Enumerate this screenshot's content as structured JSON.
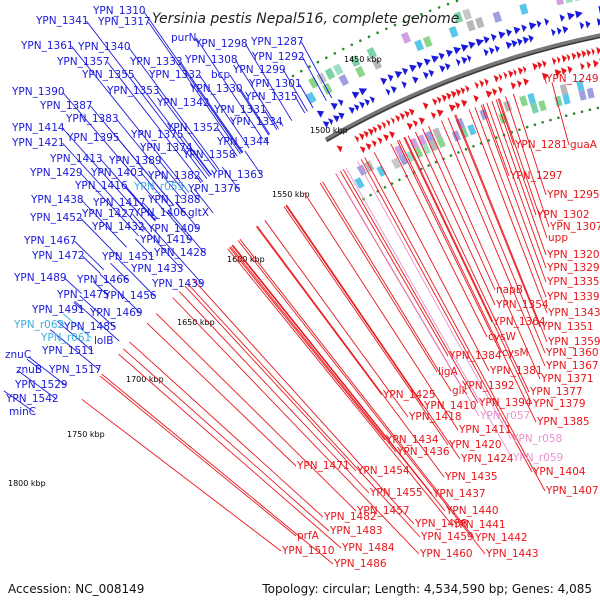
{
  "title": "Yersinia pestis Nepal516, complete genome",
  "footer": {
    "accession": "Accession: NC_008149",
    "summary": "Topology: circular; Length: 4,534,590 bp; Genes: 4,085"
  },
  "colors": {
    "blue": "#1a1adb",
    "red": "#e8161b",
    "cyan": "#3bb0e0",
    "pink": "#e892d0"
  },
  "scale_labels": [
    "1450 kbp",
    "1500 kbp",
    "1550 kbp",
    "1600 kbp",
    "1650 kbp",
    "1700 kbp",
    "1750 kbp",
    "1800 kbp"
  ],
  "left_labels": [
    {
      "t": "YPN_1310",
      "c": "blue"
    },
    {
      "t": "YPN_1341",
      "c": "blue"
    },
    {
      "t": "YPN_1317",
      "c": "blue"
    },
    {
      "t": "purN",
      "c": "blue"
    },
    {
      "t": "YPN_1298",
      "c": "blue"
    },
    {
      "t": "YPN_1287",
      "c": "blue"
    },
    {
      "t": "YPN_1361",
      "c": "blue"
    },
    {
      "t": "YPN_1340",
      "c": "blue"
    },
    {
      "t": "YPN_1308",
      "c": "blue"
    },
    {
      "t": "YPN_1292",
      "c": "blue"
    },
    {
      "t": "YPN_1357",
      "c": "blue"
    },
    {
      "t": "YPN_1333",
      "c": "blue"
    },
    {
      "t": "YPN_1299",
      "c": "blue"
    },
    {
      "t": "YPN_1355",
      "c": "blue"
    },
    {
      "t": "YPN_1332",
      "c": "blue"
    },
    {
      "t": "bcp",
      "c": "blue"
    },
    {
      "t": "YPN_1301",
      "c": "blue"
    },
    {
      "t": "YPN_1330",
      "c": "blue"
    },
    {
      "t": "YPN_1390",
      "c": "blue"
    },
    {
      "t": "YPN_1353",
      "c": "blue"
    },
    {
      "t": "YPN_1315",
      "c": "blue"
    },
    {
      "t": "YPN_1387",
      "c": "blue"
    },
    {
      "t": "YPN_1342",
      "c": "blue"
    },
    {
      "t": "YPN_1331",
      "c": "blue"
    },
    {
      "t": "YPN_1383",
      "c": "blue"
    },
    {
      "t": "YPN_1334",
      "c": "blue"
    },
    {
      "t": "YPN_1414",
      "c": "blue"
    },
    {
      "t": "YPN_1352",
      "c": "blue"
    },
    {
      "t": "YPN_1375",
      "c": "blue"
    },
    {
      "t": "YPN_1421",
      "c": "blue"
    },
    {
      "t": "YPN_1395",
      "c": "blue"
    },
    {
      "t": "YPN_1344",
      "c": "blue"
    },
    {
      "t": "YPN_1374",
      "c": "blue"
    },
    {
      "t": "YPN_1413",
      "c": "blue"
    },
    {
      "t": "YPN_1389",
      "c": "blue"
    },
    {
      "t": "YPN_1358",
      "c": "blue"
    },
    {
      "t": "YPN_1429",
      "c": "blue"
    },
    {
      "t": "YPN_1403",
      "c": "blue"
    },
    {
      "t": "YPN_1382",
      "c": "blue"
    },
    {
      "t": "YPN_1363",
      "c": "blue"
    },
    {
      "t": "YPN_1416",
      "c": "blue"
    },
    {
      "t": "YPN_r055",
      "c": "cyan"
    },
    {
      "t": "YPN_1376",
      "c": "blue"
    },
    {
      "t": "YPN_1438",
      "c": "blue"
    },
    {
      "t": "YPN_1417",
      "c": "blue"
    },
    {
      "t": "YPN_1388",
      "c": "blue"
    },
    {
      "t": "YPN_1452",
      "c": "blue"
    },
    {
      "t": "YPN_1427",
      "c": "blue"
    },
    {
      "t": "YPN_1406",
      "c": "blue"
    },
    {
      "t": "gltX",
      "c": "blue"
    },
    {
      "t": "YPN_1432",
      "c": "blue"
    },
    {
      "t": "YPN_1409",
      "c": "blue"
    },
    {
      "t": "YPN_1467",
      "c": "blue"
    },
    {
      "t": "YPN_1419",
      "c": "blue"
    },
    {
      "t": "YPN_1472",
      "c": "blue"
    },
    {
      "t": "YPN_1451",
      "c": "blue"
    },
    {
      "t": "YPN_1428",
      "c": "blue"
    },
    {
      "t": "YPN_1433",
      "c": "blue"
    },
    {
      "t": "YPN_1489",
      "c": "blue"
    },
    {
      "t": "YPN_1466",
      "c": "blue"
    },
    {
      "t": "YPN_1439",
      "c": "blue"
    },
    {
      "t": "YPN_1475",
      "c": "blue"
    },
    {
      "t": "YPN_1456",
      "c": "blue"
    },
    {
      "t": "YPN_1491",
      "c": "blue"
    },
    {
      "t": "YPN_1469",
      "c": "blue"
    },
    {
      "t": "YPN_r062",
      "c": "cyan"
    },
    {
      "t": "YPN_1485",
      "c": "blue"
    },
    {
      "t": "YPN_r061",
      "c": "cyan"
    },
    {
      "t": "lolB",
      "c": "blue"
    },
    {
      "t": "YPN_1511",
      "c": "blue"
    },
    {
      "t": "znuC",
      "c": "blue"
    },
    {
      "t": "znuB",
      "c": "blue"
    },
    {
      "t": "YPN_1517",
      "c": "blue"
    },
    {
      "t": "YPN_1529",
      "c": "blue"
    },
    {
      "t": "YPN_1542",
      "c": "blue"
    },
    {
      "t": "minC",
      "c": "blue"
    }
  ],
  "right_labels": [
    {
      "t": "YPN_1249",
      "c": "red"
    },
    {
      "t": "YPN_1281",
      "c": "red"
    },
    {
      "t": "guaA",
      "c": "red"
    },
    {
      "t": "YPN_1297",
      "c": "red"
    },
    {
      "t": "YPN_1295",
      "c": "red"
    },
    {
      "t": "YPN_1302",
      "c": "red"
    },
    {
      "t": "YPN_1307",
      "c": "red"
    },
    {
      "t": "upp",
      "c": "red"
    },
    {
      "t": "YPN_1320",
      "c": "red"
    },
    {
      "t": "YPN_1329",
      "c": "red"
    },
    {
      "t": "YPN_1335",
      "c": "red"
    },
    {
      "t": "napB",
      "c": "red"
    },
    {
      "t": "YPN_1339",
      "c": "red"
    },
    {
      "t": "YPN_1354",
      "c": "red"
    },
    {
      "t": "YPN_1343",
      "c": "red"
    },
    {
      "t": "YPN_1364",
      "c": "red"
    },
    {
      "t": "YPN_1351",
      "c": "red"
    },
    {
      "t": "cysW",
      "c": "red"
    },
    {
      "t": "YPN_1359",
      "c": "red"
    },
    {
      "t": "cysM",
      "c": "red"
    },
    {
      "t": "YPN_1360",
      "c": "red"
    },
    {
      "t": "YPN_1384",
      "c": "red"
    },
    {
      "t": "YPN_1367",
      "c": "red"
    },
    {
      "t": "ligA",
      "c": "red"
    },
    {
      "t": "YPN_1381",
      "c": "red"
    },
    {
      "t": "YPN_1371",
      "c": "red"
    },
    {
      "t": "YPN_1392",
      "c": "red"
    },
    {
      "t": "YPN_1377",
      "c": "red"
    },
    {
      "t": "glk",
      "c": "red"
    },
    {
      "t": "YPN_1425",
      "c": "red"
    },
    {
      "t": "YPN_1394",
      "c": "red"
    },
    {
      "t": "YPN_1379",
      "c": "red"
    },
    {
      "t": "YPN_1410",
      "c": "red"
    },
    {
      "t": "YPN_r057",
      "c": "pink"
    },
    {
      "t": "YPN_1418",
      "c": "red"
    },
    {
      "t": "YPN_1385",
      "c": "red"
    },
    {
      "t": "YPN_1411",
      "c": "red"
    },
    {
      "t": "YPN_1434",
      "c": "red"
    },
    {
      "t": "YPN_r058",
      "c": "pink"
    },
    {
      "t": "YPN_1420",
      "c": "red"
    },
    {
      "t": "YPN_1436",
      "c": "red"
    },
    {
      "t": "YPN_1424",
      "c": "red"
    },
    {
      "t": "YPN_r059",
      "c": "pink"
    },
    {
      "t": "YPN_1471",
      "c": "red"
    },
    {
      "t": "YPN_1404",
      "c": "red"
    },
    {
      "t": "YPN_1454",
      "c": "red"
    },
    {
      "t": "YPN_1435",
      "c": "red"
    },
    {
      "t": "YPN_1407",
      "c": "red"
    },
    {
      "t": "YPN_1455",
      "c": "red"
    },
    {
      "t": "YPN_1437",
      "c": "red"
    },
    {
      "t": "YPN_1457",
      "c": "red"
    },
    {
      "t": "YPN_1440",
      "c": "red"
    },
    {
      "t": "YPN_1482",
      "c": "red"
    },
    {
      "t": "YPN_1458",
      "c": "red"
    },
    {
      "t": "YPN_1441",
      "c": "red"
    },
    {
      "t": "YPN_1483",
      "c": "red"
    },
    {
      "t": "prfA",
      "c": "red"
    },
    {
      "t": "YPN_1459",
      "c": "red"
    },
    {
      "t": "YPN_1442",
      "c": "red"
    },
    {
      "t": "YPN_1484",
      "c": "red"
    },
    {
      "t": "YPN_1510",
      "c": "red"
    },
    {
      "t": "YPN_1460",
      "c": "red"
    },
    {
      "t": "YPN_1443",
      "c": "red"
    },
    {
      "t": "YPN_1486",
      "c": "red"
    }
  ]
}
